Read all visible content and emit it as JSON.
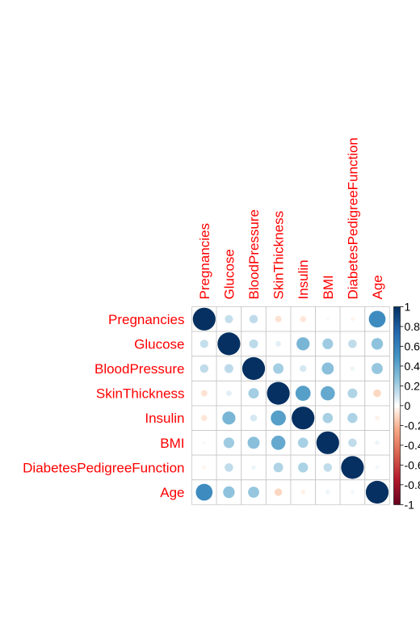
{
  "chart_data": {
    "type": "heatmap",
    "variables": [
      "Pregnancies",
      "Glucose",
      "BloodPressure",
      "SkinThickness",
      "Insulin",
      "BMI",
      "DiabetesPedigreeFunction",
      "Age"
    ],
    "matrix": [
      [
        1.0,
        0.13,
        0.14,
        -0.08,
        -0.07,
        0.02,
        -0.03,
        0.54
      ],
      [
        0.13,
        1.0,
        0.15,
        0.06,
        0.33,
        0.22,
        0.14,
        0.26
      ],
      [
        0.14,
        0.15,
        1.0,
        0.21,
        0.09,
        0.28,
        0.04,
        0.24
      ],
      [
        -0.08,
        0.06,
        0.21,
        1.0,
        0.44,
        0.39,
        0.18,
        -0.11
      ],
      [
        -0.07,
        0.33,
        0.09,
        0.44,
        1.0,
        0.2,
        0.19,
        -0.04
      ],
      [
        0.02,
        0.22,
        0.28,
        0.39,
        0.2,
        1.0,
        0.14,
        0.04
      ],
      [
        -0.03,
        0.14,
        0.04,
        0.18,
        0.19,
        0.14,
        1.0,
        0.03
      ],
      [
        0.54,
        0.26,
        0.24,
        -0.11,
        -0.04,
        0.04,
        0.03,
        1.0
      ]
    ],
    "colorbar": {
      "ticks": [
        "1",
        "0.8",
        "0.6",
        "0.4",
        "0.2",
        "0",
        "-0.2",
        "-0.4",
        "-0.6",
        "-0.8",
        "-1"
      ],
      "range": [
        -1,
        1
      ]
    },
    "label_color": "#ff0000",
    "grid": true
  }
}
